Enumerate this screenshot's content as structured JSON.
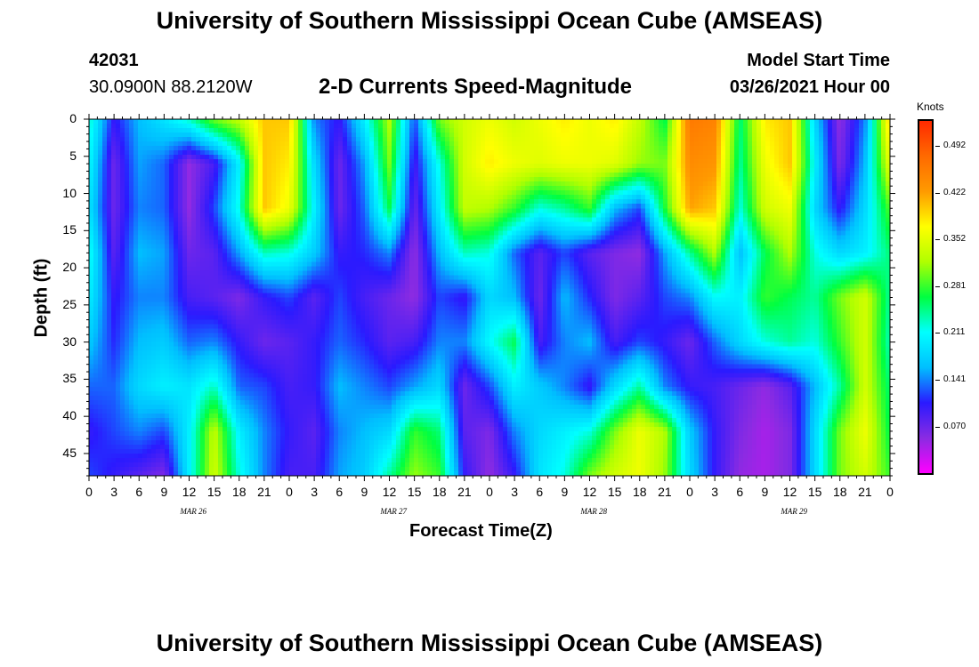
{
  "title_top": "University of Southern Mississippi Ocean Cube (AMSEAS)",
  "title_bottom": "University of Southern Mississippi Ocean Cube (AMSEAS)",
  "station": {
    "id": "42031",
    "coords": "30.0900N  88.2120W"
  },
  "model": {
    "label": "Model Start Time",
    "start": "03/26/2021 Hour 00"
  },
  "colors": {
    "scale": [
      "#ff00ff",
      "#8a2be2",
      "#2a1aff",
      "#00bfff",
      "#00ffff",
      "#00ff40",
      "#b0ff00",
      "#ffff00",
      "#ff9a00",
      "#ff6a00",
      "#ff2a00"
    ]
  },
  "chart_data": {
    "type": "heatmap",
    "title": "2-D Currents Speed-Magnitude",
    "xlabel": "Forecast Time(Z)",
    "ylabel": "Depth (ft)",
    "colorbar_label": "Knots",
    "x_unit": "forecast hour (Z) from 03/26/2021 00Z",
    "xlim": [
      0,
      96
    ],
    "ylim": [
      0,
      48
    ],
    "vrange": [
      0.0,
      0.53
    ],
    "x_tick_labels": [
      "0",
      "3",
      "6",
      "9",
      "12",
      "15",
      "18",
      "21",
      "0",
      "3",
      "6",
      "9",
      "12",
      "15",
      "18",
      "21",
      "0",
      "3",
      "6",
      "9",
      "12",
      "15",
      "18",
      "21",
      "0",
      "3",
      "6",
      "9",
      "12",
      "15",
      "18",
      "21",
      "0"
    ],
    "date_labels": [
      "MAR 26",
      "MAR 27",
      "MAR 28",
      "MAR 29"
    ],
    "y_ticks": [
      0,
      5,
      10,
      15,
      20,
      25,
      30,
      35,
      40,
      45
    ],
    "colorbar_ticks": [
      "0.492",
      "0.422",
      "0.352",
      "0.281",
      "0.211",
      "0.141",
      "0.070"
    ],
    "colorbar_tick_values": [
      0.492,
      0.422,
      0.352,
      0.281,
      0.211,
      0.141,
      0.07
    ],
    "depths": [
      0,
      6,
      12,
      18,
      24,
      30,
      36,
      42,
      48
    ],
    "times": [
      0,
      3,
      6,
      9,
      12,
      15,
      18,
      21,
      24,
      27,
      30,
      33,
      36,
      39,
      42,
      45,
      48,
      51,
      54,
      57,
      60,
      63,
      66,
      69,
      72,
      75,
      78,
      81,
      84,
      87,
      90,
      93,
      96
    ],
    "speed": [
      [
        0.23,
        0.1,
        0.16,
        0.19,
        0.23,
        0.3,
        0.33,
        0.4,
        0.4,
        0.14,
        0.1,
        0.2,
        0.32,
        0.12,
        0.3,
        0.34,
        0.36,
        0.34,
        0.36,
        0.38,
        0.36,
        0.38,
        0.33,
        0.26,
        0.46,
        0.45,
        0.25,
        0.38,
        0.4,
        0.18,
        0.05,
        0.14,
        0.4
      ],
      [
        0.21,
        0.07,
        0.15,
        0.13,
        0.05,
        0.09,
        0.2,
        0.4,
        0.38,
        0.18,
        0.07,
        0.15,
        0.3,
        0.09,
        0.22,
        0.34,
        0.38,
        0.36,
        0.35,
        0.36,
        0.36,
        0.35,
        0.31,
        0.3,
        0.44,
        0.43,
        0.24,
        0.36,
        0.4,
        0.2,
        0.06,
        0.16,
        0.36
      ],
      [
        0.19,
        0.07,
        0.14,
        0.13,
        0.05,
        0.12,
        0.22,
        0.4,
        0.36,
        0.2,
        0.07,
        0.13,
        0.26,
        0.07,
        0.2,
        0.33,
        0.32,
        0.28,
        0.22,
        0.24,
        0.28,
        0.16,
        0.12,
        0.27,
        0.42,
        0.4,
        0.22,
        0.34,
        0.36,
        0.18,
        0.1,
        0.18,
        0.29
      ],
      [
        0.22,
        0.08,
        0.16,
        0.15,
        0.07,
        0.08,
        0.15,
        0.23,
        0.22,
        0.17,
        0.1,
        0.11,
        0.14,
        0.05,
        0.16,
        0.23,
        0.22,
        0.13,
        0.08,
        0.12,
        0.08,
        0.06,
        0.05,
        0.15,
        0.24,
        0.32,
        0.16,
        0.26,
        0.32,
        0.22,
        0.18,
        0.2,
        0.25
      ],
      [
        0.2,
        0.1,
        0.14,
        0.14,
        0.09,
        0.08,
        0.06,
        0.1,
        0.12,
        0.08,
        0.12,
        0.09,
        0.07,
        0.05,
        0.12,
        0.1,
        0.18,
        0.16,
        0.07,
        0.16,
        0.11,
        0.06,
        0.08,
        0.12,
        0.14,
        0.21,
        0.2,
        0.28,
        0.26,
        0.24,
        0.3,
        0.34,
        0.24
      ],
      [
        0.17,
        0.11,
        0.16,
        0.17,
        0.13,
        0.14,
        0.1,
        0.07,
        0.08,
        0.1,
        0.13,
        0.11,
        0.08,
        0.09,
        0.14,
        0.14,
        0.21,
        0.26,
        0.09,
        0.14,
        0.16,
        0.09,
        0.12,
        0.1,
        0.07,
        0.13,
        0.18,
        0.22,
        0.24,
        0.22,
        0.28,
        0.34,
        0.23
      ],
      [
        0.13,
        0.13,
        0.18,
        0.2,
        0.19,
        0.23,
        0.13,
        0.12,
        0.09,
        0.1,
        0.16,
        0.14,
        0.12,
        0.15,
        0.18,
        0.07,
        0.12,
        0.2,
        0.17,
        0.14,
        0.1,
        0.18,
        0.24,
        0.14,
        0.1,
        0.09,
        0.07,
        0.05,
        0.08,
        0.16,
        0.24,
        0.34,
        0.25
      ],
      [
        0.1,
        0.12,
        0.14,
        0.12,
        0.2,
        0.33,
        0.2,
        0.14,
        0.1,
        0.08,
        0.14,
        0.16,
        0.18,
        0.28,
        0.25,
        0.08,
        0.06,
        0.14,
        0.18,
        0.2,
        0.22,
        0.3,
        0.36,
        0.32,
        0.17,
        0.1,
        0.06,
        0.04,
        0.06,
        0.18,
        0.3,
        0.36,
        0.26
      ],
      [
        0.12,
        0.1,
        0.08,
        0.06,
        0.2,
        0.34,
        0.22,
        0.14,
        0.09,
        0.09,
        0.15,
        0.17,
        0.24,
        0.31,
        0.28,
        0.1,
        0.05,
        0.1,
        0.19,
        0.22,
        0.3,
        0.34,
        0.36,
        0.31,
        0.18,
        0.1,
        0.05,
        0.04,
        0.06,
        0.18,
        0.3,
        0.34,
        0.28
      ]
    ]
  }
}
